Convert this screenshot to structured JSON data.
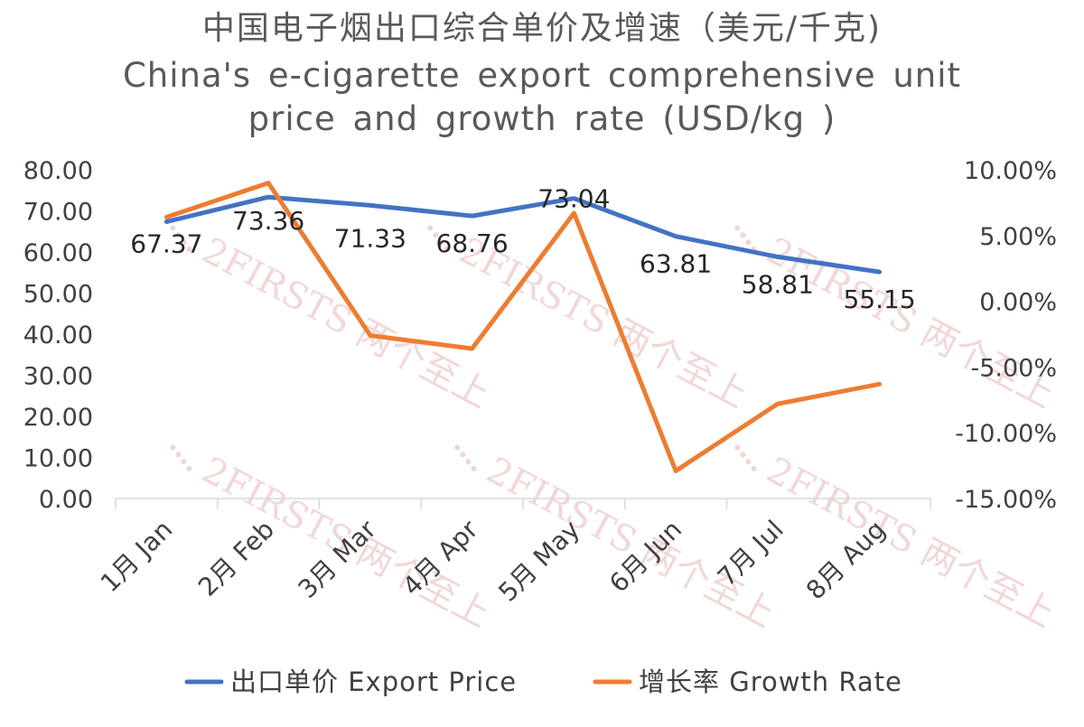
{
  "chart_data": {
    "type": "line",
    "title": "中国电子烟出口综合单价及增速（美元/千克)",
    "subtitle_line1": "China's e-cigarette export comprehensive unit",
    "subtitle_line2": "price and growth rate (USD/kg )",
    "categories": [
      "1月 Jan",
      "2月 Feb",
      "3月 Mar",
      "4月 Apr",
      "5月 May",
      "6月 Jun",
      "7月 Jul",
      "8月 Aug"
    ],
    "series": [
      {
        "name": "出口单价 Export Price",
        "axis": "left",
        "color": "#4472C4",
        "values": [
          67.37,
          73.36,
          71.33,
          68.76,
          73.04,
          63.81,
          58.81,
          55.15
        ],
        "labels": [
          "67.37",
          "73.36",
          "71.33",
          "68.76",
          "73.04",
          "63.81",
          "58.81",
          "55.15"
        ]
      },
      {
        "name": "增长率 Growth Rate",
        "axis": "right",
        "color": "#ED7D31",
        "values": [
          6.4,
          9.0,
          -2.6,
          -3.6,
          6.7,
          -12.9,
          -7.8,
          -6.3
        ]
      }
    ],
    "left_axis": {
      "range": [
        0,
        80
      ],
      "ticks": [
        0,
        10,
        20,
        30,
        40,
        50,
        60,
        70,
        80
      ],
      "tick_labels": [
        "0.00",
        "10.00",
        "20.00",
        "30.00",
        "40.00",
        "50.00",
        "60.00",
        "70.00",
        "80.00"
      ]
    },
    "right_axis": {
      "range": [
        -15,
        10
      ],
      "ticks": [
        -15,
        -10,
        -5,
        0,
        5,
        10
      ],
      "tick_labels": [
        "-15.00%",
        "-10.00%",
        "-5.00%",
        "0.00%",
        "5.00%",
        "10.00%"
      ]
    },
    "legend_position": "bottom",
    "grid": false
  },
  "watermark": {
    "text": "2FIRSTS 两个至上"
  }
}
